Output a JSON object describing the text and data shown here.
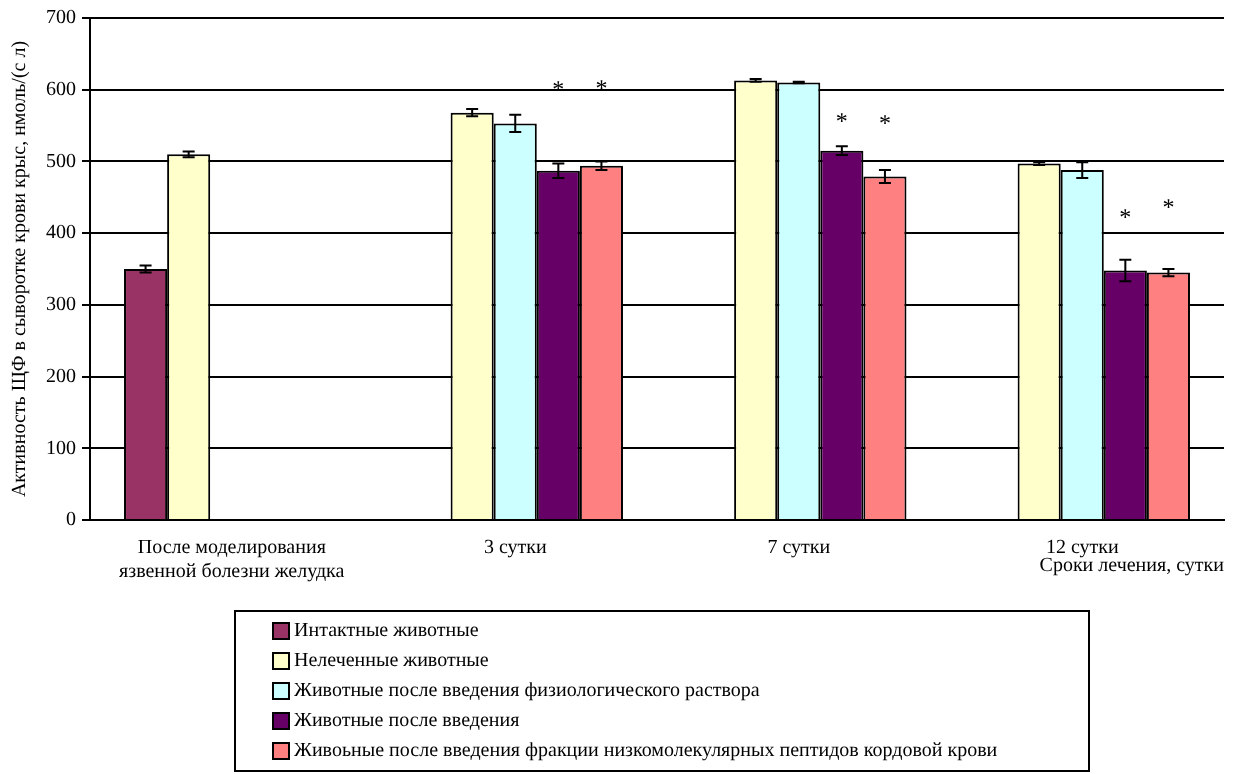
{
  "chart_data": {
    "type": "bar",
    "ylabel": "Активность ЩФ в сыворотке крови крыс, нмоль/(с л)",
    "xlabel": "Сроки лечения, сутки",
    "categories": [
      "После моделирования язвенной болезни желудка",
      "3 сутки",
      "7 сутки",
      "12 сутки"
    ],
    "series": [
      {
        "name": "Интактные животные",
        "color": "#993366",
        "values": [
          350,
          null,
          null,
          null
        ],
        "errors": [
          5,
          null,
          null,
          null
        ]
      },
      {
        "name": "Нелеченные животные",
        "color": "#ffffcc",
        "values": [
          510,
          568,
          613,
          497
        ],
        "errors": [
          4,
          5,
          2,
          2
        ]
      },
      {
        "name": "Животные после введения физиологического раствора",
        "color": "#ccffff",
        "values": [
          null,
          553,
          610,
          488
        ],
        "errors": [
          null,
          12,
          1,
          11
        ]
      },
      {
        "name": "Животные после введения",
        "color": "#660066",
        "values": [
          null,
          487,
          515,
          348
        ],
        "errors": [
          null,
          10,
          6,
          15
        ]
      },
      {
        "name": "Живоьные после введения фракции низкомолекулярных пептидов кордовой крови",
        "color": "#ff8080",
        "values": [
          null,
          494,
          479,
          345
        ],
        "errors": [
          null,
          6,
          9,
          5
        ]
      }
    ],
    "annotations": [
      "*",
      "*",
      "*",
      "*",
      "*",
      "*"
    ],
    "ylim": [
      0,
      700
    ],
    "yticks": [
      0,
      100,
      200,
      300,
      400,
      500,
      600,
      700
    ],
    "grid": "y",
    "legend": "bottom"
  }
}
